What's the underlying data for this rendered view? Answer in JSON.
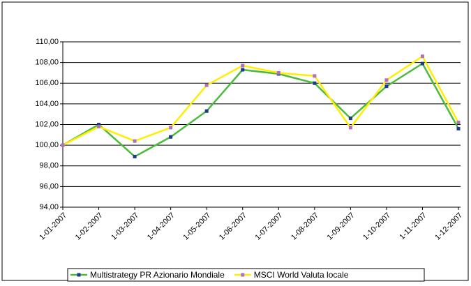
{
  "chart_data": {
    "type": "line",
    "categories": [
      "1-01-2007",
      "1-02-2007",
      "1-03-2007",
      "1-04-2007",
      "1-05-2007",
      "1-06-2007",
      "1-07-2007",
      "1-08-2007",
      "1-09-2007",
      "1-10-2007",
      "1-11-2007",
      "1-12-2007"
    ],
    "series": [
      {
        "name": "Multistrategy PR Azionario Mondiale",
        "color": "#4cbb3c",
        "marker_color": "#1f3a8a",
        "values": [
          100,
          102.0,
          98.9,
          100.8,
          103.3,
          107.3,
          106.9,
          106.0,
          102.6,
          105.7,
          107.9,
          101.6
        ]
      },
      {
        "name": "MSCI World Valuta locale",
        "color": "#ffee00",
        "marker_color": "#b070c0",
        "values": [
          100,
          101.8,
          100.4,
          101.7,
          105.8,
          107.7,
          107.0,
          106.7,
          101.7,
          106.3,
          108.6,
          102.2
        ]
      }
    ],
    "ylim": [
      94,
      110
    ],
    "yticks": [
      {
        "value": 94,
        "label": "94,00"
      },
      {
        "value": 96,
        "label": "96,00"
      },
      {
        "value": 98,
        "label": "98,00"
      },
      {
        "value": 100,
        "label": "100,00"
      },
      {
        "value": 102,
        "label": "102,00"
      },
      {
        "value": 104,
        "label": "104,00"
      },
      {
        "value": 106,
        "label": "106,00"
      },
      {
        "value": 108,
        "label": "108,00"
      },
      {
        "value": 110,
        "label": "110,00"
      }
    ],
    "grid": true,
    "legend": "bottom"
  }
}
